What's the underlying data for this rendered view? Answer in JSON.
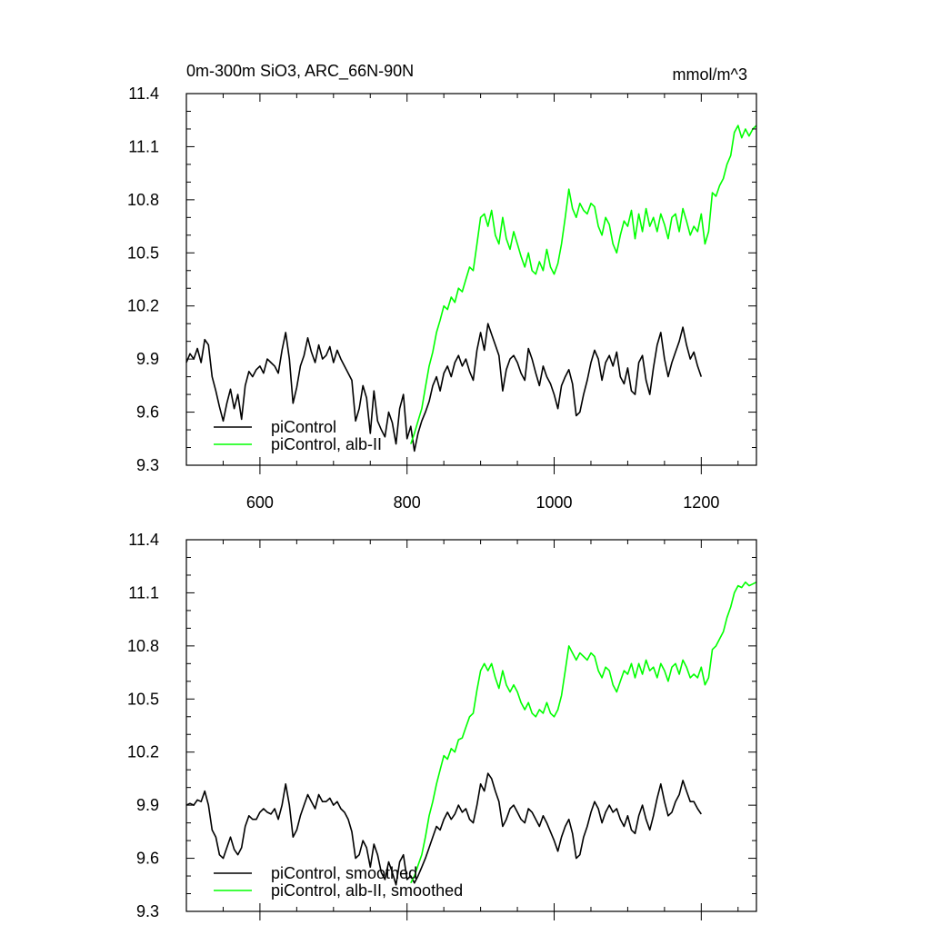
{
  "colors": {
    "black_series": "#000000",
    "green_series": "#00ff00",
    "axis": "#000000",
    "background": "#ffffff"
  },
  "chart_data": [
    {
      "type": "line",
      "title": "0m-300m SiO3, ARC_66N-90N",
      "units": "mmol/m^3",
      "xlabel": "",
      "ylabel": "",
      "xlim": [
        500,
        1275
      ],
      "ylim": [
        9.3,
        11.4
      ],
      "x_ticks": [
        600,
        800,
        1000,
        1200
      ],
      "x_tick_labels": [
        "600",
        "800",
        "1000",
        "1200"
      ],
      "y_ticks": [
        9.3,
        9.6,
        9.9,
        10.2,
        10.5,
        10.8,
        11.1,
        11.4
      ],
      "y_tick_labels": [
        "9.3",
        "9.6",
        "9.9",
        "10.2",
        "10.5",
        "10.8",
        "11.1",
        "11.4"
      ],
      "grid": false,
      "legend_position": "bottom-left",
      "series": [
        {
          "name": "piControl",
          "color": "#000000",
          "x": [
            500,
            505,
            510,
            515,
            520,
            525,
            530,
            535,
            540,
            545,
            550,
            555,
            560,
            565,
            570,
            575,
            580,
            585,
            590,
            595,
            600,
            605,
            610,
            615,
            620,
            625,
            630,
            635,
            640,
            645,
            650,
            655,
            660,
            665,
            670,
            675,
            680,
            685,
            690,
            695,
            700,
            705,
            710,
            715,
            720,
            725,
            730,
            735,
            740,
            745,
            750,
            755,
            760,
            765,
            770,
            775,
            780,
            785,
            790,
            795,
            800,
            805,
            810,
            815,
            820,
            825,
            830,
            835,
            840,
            845,
            850,
            855,
            860,
            865,
            870,
            875,
            880,
            885,
            890,
            895,
            900,
            905,
            910,
            915,
            920,
            925,
            930,
            935,
            940,
            945,
            950,
            955,
            960,
            965,
            970,
            975,
            980,
            985,
            990,
            995,
            1000,
            1005,
            1010,
            1015,
            1020,
            1025,
            1030,
            1035,
            1040,
            1045,
            1050,
            1055,
            1060,
            1065,
            1070,
            1075,
            1080,
            1085,
            1090,
            1095,
            1100,
            1105,
            1110,
            1115,
            1120,
            1125,
            1130,
            1135,
            1140,
            1145,
            1150,
            1155,
            1160,
            1165,
            1170,
            1175,
            1180,
            1185,
            1190,
            1195,
            1200
          ],
          "y": [
            9.88,
            9.93,
            9.9,
            9.96,
            9.88,
            10.01,
            9.98,
            9.8,
            9.72,
            9.63,
            9.55,
            9.65,
            9.73,
            9.62,
            9.7,
            9.56,
            9.75,
            9.83,
            9.8,
            9.84,
            9.86,
            9.82,
            9.9,
            9.88,
            9.86,
            9.82,
            9.95,
            10.05,
            9.9,
            9.65,
            9.74,
            9.86,
            9.92,
            10.02,
            9.94,
            9.88,
            9.98,
            9.9,
            9.92,
            9.97,
            9.88,
            9.95,
            9.9,
            9.86,
            9.82,
            9.78,
            9.55,
            9.62,
            9.75,
            9.68,
            9.48,
            9.72,
            9.55,
            9.5,
            9.46,
            9.6,
            9.54,
            9.42,
            9.62,
            9.7,
            9.45,
            9.52,
            9.38,
            9.48,
            9.55,
            9.6,
            9.66,
            9.75,
            9.8,
            9.72,
            9.82,
            9.86,
            9.8,
            9.88,
            9.92,
            9.86,
            9.9,
            9.83,
            9.78,
            9.95,
            10.05,
            9.95,
            10.1,
            10.04,
            9.98,
            9.92,
            9.72,
            9.84,
            9.9,
            9.92,
            9.88,
            9.82,
            9.78,
            9.96,
            9.9,
            9.82,
            9.75,
            9.86,
            9.8,
            9.76,
            9.7,
            9.62,
            9.75,
            9.8,
            9.84,
            9.76,
            9.58,
            9.6,
            9.7,
            9.78,
            9.88,
            9.95,
            9.9,
            9.78,
            9.88,
            9.92,
            9.86,
            9.94,
            9.8,
            9.76,
            9.85,
            9.72,
            9.7,
            9.88,
            9.92,
            9.78,
            9.7,
            9.85,
            9.98,
            10.05,
            9.9,
            9.8,
            9.88,
            9.94,
            10.0,
            10.08,
            9.98,
            9.9,
            9.94,
            9.86,
            9.8
          ]
        },
        {
          "name": "piControl, alb-II",
          "color": "#00ff00",
          "x": [
            805,
            810,
            815,
            820,
            825,
            830,
            835,
            840,
            845,
            850,
            855,
            860,
            865,
            870,
            875,
            880,
            885,
            890,
            895,
            900,
            905,
            910,
            915,
            920,
            925,
            930,
            935,
            940,
            945,
            950,
            955,
            960,
            965,
            970,
            975,
            980,
            985,
            990,
            995,
            1000,
            1005,
            1010,
            1015,
            1020,
            1025,
            1030,
            1035,
            1040,
            1045,
            1050,
            1055,
            1060,
            1065,
            1070,
            1075,
            1080,
            1085,
            1090,
            1095,
            1100,
            1105,
            1110,
            1115,
            1120,
            1125,
            1130,
            1135,
            1140,
            1145,
            1150,
            1155,
            1160,
            1165,
            1170,
            1175,
            1180,
            1185,
            1190,
            1195,
            1200,
            1205,
            1210,
            1215,
            1220,
            1225,
            1230,
            1235,
            1240,
            1245,
            1250,
            1255,
            1260,
            1265,
            1270,
            1275
          ],
          "y": [
            9.42,
            9.48,
            9.55,
            9.62,
            9.74,
            9.86,
            9.94,
            10.05,
            10.12,
            10.2,
            10.18,
            10.25,
            10.22,
            10.3,
            10.28,
            10.35,
            10.42,
            10.4,
            10.55,
            10.7,
            10.72,
            10.65,
            10.74,
            10.6,
            10.55,
            10.7,
            10.58,
            10.52,
            10.62,
            10.55,
            10.48,
            10.42,
            10.5,
            10.4,
            10.38,
            10.45,
            10.4,
            10.52,
            10.42,
            10.38,
            10.44,
            10.55,
            10.7,
            10.86,
            10.75,
            10.7,
            10.78,
            10.74,
            10.72,
            10.78,
            10.76,
            10.65,
            10.6,
            10.7,
            10.66,
            10.55,
            10.5,
            10.6,
            10.68,
            10.65,
            10.74,
            10.58,
            10.72,
            10.62,
            10.75,
            10.65,
            10.7,
            10.62,
            10.72,
            10.66,
            10.58,
            10.7,
            10.72,
            10.62,
            10.75,
            10.68,
            10.6,
            10.65,
            10.62,
            10.72,
            10.55,
            10.62,
            10.84,
            10.82,
            10.88,
            10.92,
            11.0,
            11.05,
            11.18,
            11.22,
            11.15,
            11.2,
            11.16,
            11.2,
            11.22
          ]
        }
      ]
    },
    {
      "type": "line",
      "title": "",
      "xlabel": "",
      "ylabel": "",
      "xlim": [
        500,
        1275
      ],
      "ylim": [
        9.3,
        11.4
      ],
      "x_ticks": [
        600,
        800,
        1000,
        1200
      ],
      "x_tick_labels": [],
      "y_ticks": [
        9.3,
        9.6,
        9.9,
        10.2,
        10.5,
        10.8,
        11.1,
        11.4
      ],
      "y_tick_labels": [
        "9.3",
        "9.6",
        "9.9",
        "10.2",
        "10.5",
        "10.8",
        "11.1",
        "11.4"
      ],
      "grid": false,
      "legend_position": "bottom-left",
      "series": [
        {
          "name": "piControl, smoothed",
          "color": "#000000",
          "x": [
            500,
            505,
            510,
            515,
            520,
            525,
            530,
            535,
            540,
            545,
            550,
            555,
            560,
            565,
            570,
            575,
            580,
            585,
            590,
            595,
            600,
            605,
            610,
            615,
            620,
            625,
            630,
            635,
            640,
            645,
            650,
            655,
            660,
            665,
            670,
            675,
            680,
            685,
            690,
            695,
            700,
            705,
            710,
            715,
            720,
            725,
            730,
            735,
            740,
            745,
            750,
            755,
            760,
            765,
            770,
            775,
            780,
            785,
            790,
            795,
            800,
            805,
            810,
            815,
            820,
            825,
            830,
            835,
            840,
            845,
            850,
            855,
            860,
            865,
            870,
            875,
            880,
            885,
            890,
            895,
            900,
            905,
            910,
            915,
            920,
            925,
            930,
            935,
            940,
            945,
            950,
            955,
            960,
            965,
            970,
            975,
            980,
            985,
            990,
            995,
            1000,
            1005,
            1010,
            1015,
            1020,
            1025,
            1030,
            1035,
            1040,
            1045,
            1050,
            1055,
            1060,
            1065,
            1070,
            1075,
            1080,
            1085,
            1090,
            1095,
            1100,
            1105,
            1110,
            1115,
            1120,
            1125,
            1130,
            1135,
            1140,
            1145,
            1150,
            1155,
            1160,
            1165,
            1170,
            1175,
            1180,
            1185,
            1190,
            1195,
            1200
          ],
          "y": [
            9.9,
            9.91,
            9.9,
            9.93,
            9.92,
            9.98,
            9.9,
            9.76,
            9.72,
            9.62,
            9.6,
            9.66,
            9.72,
            9.65,
            9.62,
            9.66,
            9.78,
            9.84,
            9.82,
            9.82,
            9.86,
            9.88,
            9.86,
            9.85,
            9.88,
            9.82,
            9.9,
            10.02,
            9.9,
            9.72,
            9.76,
            9.84,
            9.9,
            9.96,
            9.92,
            9.88,
            9.96,
            9.92,
            9.92,
            9.94,
            9.9,
            9.92,
            9.88,
            9.86,
            9.82,
            9.75,
            9.6,
            9.62,
            9.7,
            9.66,
            9.55,
            9.68,
            9.62,
            9.52,
            9.48,
            9.58,
            9.52,
            9.45,
            9.58,
            9.62,
            9.48,
            9.5,
            9.46,
            9.5,
            9.55,
            9.6,
            9.66,
            9.72,
            9.78,
            9.76,
            9.82,
            9.86,
            9.82,
            9.85,
            9.9,
            9.86,
            9.88,
            9.82,
            9.8,
            9.9,
            10.02,
            9.98,
            10.08,
            10.05,
            9.98,
            9.92,
            9.78,
            9.82,
            9.88,
            9.9,
            9.86,
            9.82,
            9.8,
            9.88,
            9.86,
            9.82,
            9.78,
            9.84,
            9.8,
            9.75,
            9.7,
            9.64,
            9.72,
            9.78,
            9.82,
            9.74,
            9.6,
            9.62,
            9.72,
            9.78,
            9.86,
            9.92,
            9.88,
            9.8,
            9.86,
            9.9,
            9.86,
            9.88,
            9.82,
            9.78,
            9.84,
            9.76,
            9.74,
            9.84,
            9.9,
            9.82,
            9.76,
            9.84,
            9.94,
            10.02,
            9.92,
            9.84,
            9.86,
            9.92,
            9.96,
            10.04,
            9.98,
            9.92,
            9.92,
            9.88,
            9.85
          ]
        },
        {
          "name": "piControl, alb-II, smoothed",
          "color": "#00ff00",
          "x": [
            805,
            810,
            815,
            820,
            825,
            830,
            835,
            840,
            845,
            850,
            855,
            860,
            865,
            870,
            875,
            880,
            885,
            890,
            895,
            900,
            905,
            910,
            915,
            920,
            925,
            930,
            935,
            940,
            945,
            950,
            955,
            960,
            965,
            970,
            975,
            980,
            985,
            990,
            995,
            1000,
            1005,
            1010,
            1015,
            1020,
            1025,
            1030,
            1035,
            1040,
            1045,
            1050,
            1055,
            1060,
            1065,
            1070,
            1075,
            1080,
            1085,
            1090,
            1095,
            1100,
            1105,
            1110,
            1115,
            1120,
            1125,
            1130,
            1135,
            1140,
            1145,
            1150,
            1155,
            1160,
            1165,
            1170,
            1175,
            1180,
            1185,
            1190,
            1195,
            1200,
            1205,
            1210,
            1215,
            1220,
            1225,
            1230,
            1235,
            1240,
            1245,
            1250,
            1255,
            1260,
            1265,
            1270,
            1275
          ],
          "y": [
            9.46,
            9.5,
            9.56,
            9.62,
            9.72,
            9.84,
            9.92,
            10.02,
            10.1,
            10.18,
            10.16,
            10.22,
            10.2,
            10.27,
            10.28,
            10.34,
            10.4,
            10.42,
            10.55,
            10.66,
            10.7,
            10.66,
            10.7,
            10.62,
            10.56,
            10.66,
            10.58,
            10.54,
            10.58,
            10.54,
            10.48,
            10.44,
            10.48,
            10.42,
            10.4,
            10.44,
            10.42,
            10.48,
            10.42,
            10.4,
            10.44,
            10.52,
            10.66,
            10.8,
            10.76,
            10.72,
            10.76,
            10.74,
            10.72,
            10.76,
            10.74,
            10.66,
            10.62,
            10.68,
            10.66,
            10.58,
            10.54,
            10.6,
            10.66,
            10.64,
            10.7,
            10.62,
            10.7,
            10.64,
            10.72,
            10.66,
            10.68,
            10.62,
            10.7,
            10.66,
            10.6,
            10.68,
            10.7,
            10.64,
            10.72,
            10.68,
            10.62,
            10.64,
            10.62,
            10.68,
            10.58,
            10.62,
            10.78,
            10.8,
            10.84,
            10.88,
            10.96,
            11.02,
            11.1,
            11.14,
            11.13,
            11.16,
            11.14,
            11.15,
            11.16
          ]
        }
      ]
    }
  ]
}
